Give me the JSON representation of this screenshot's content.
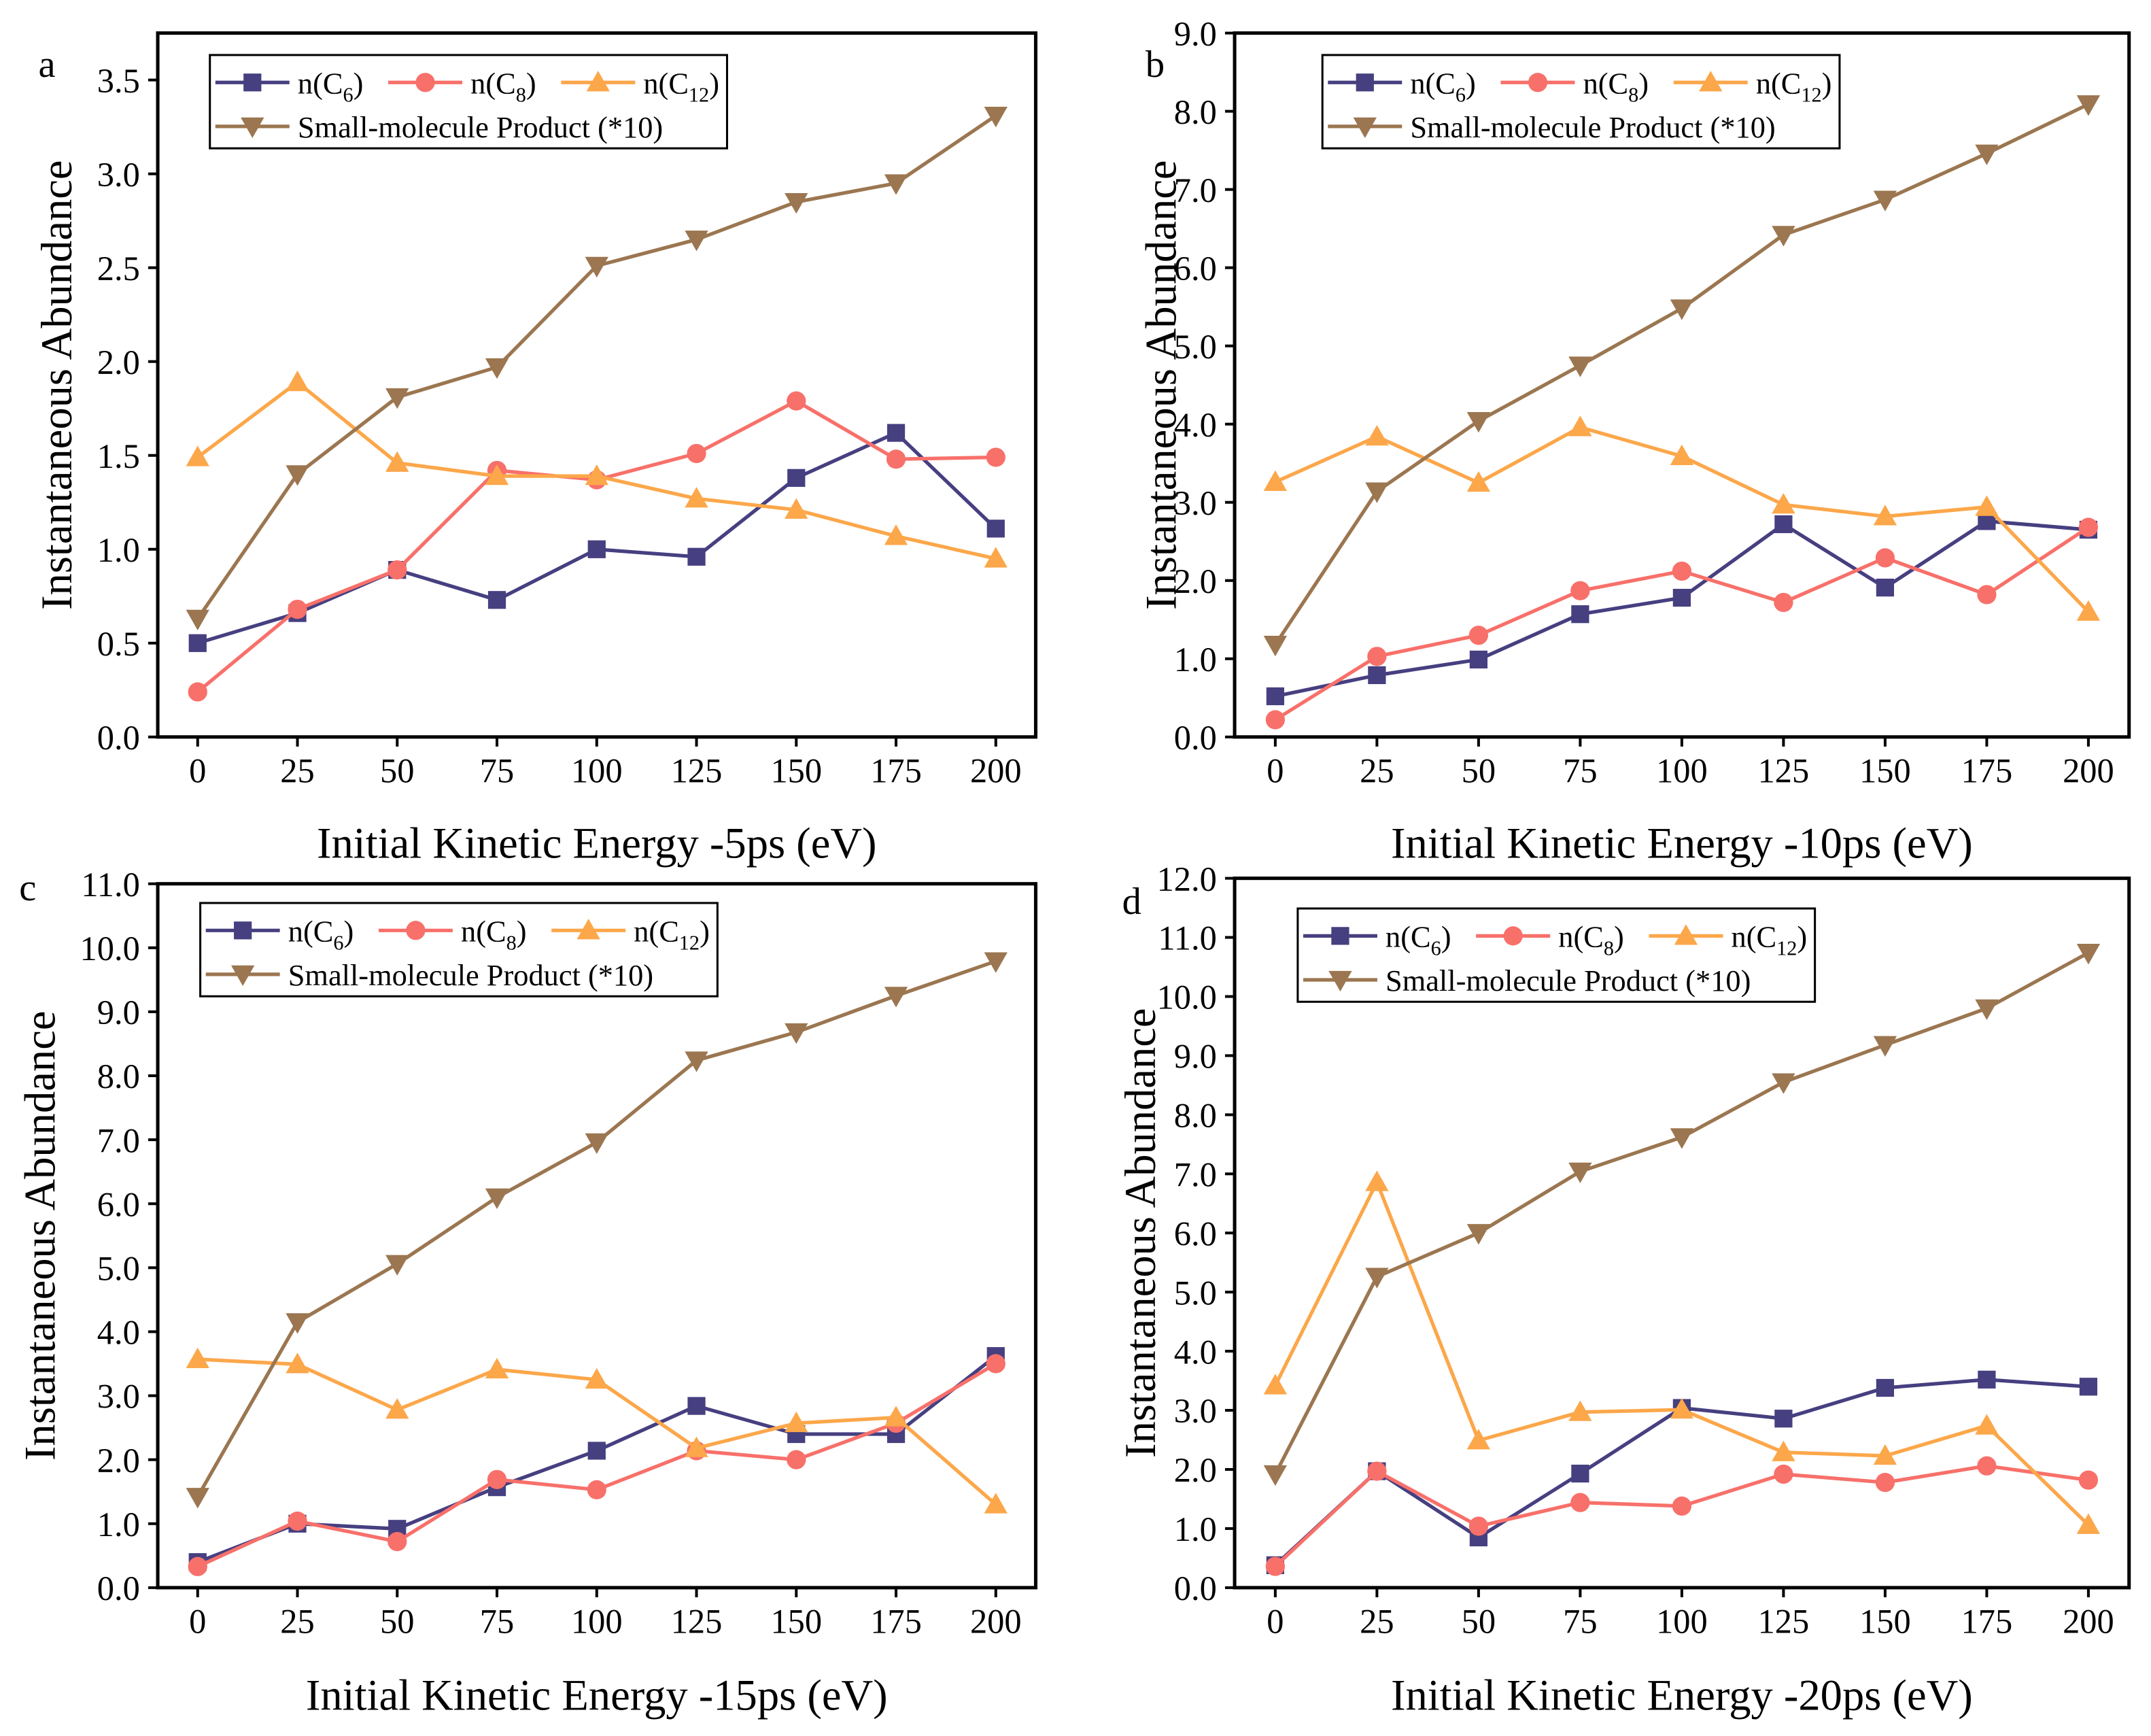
{
  "colors": {
    "c6": "#463f80",
    "c8": "#f8706a",
    "c12": "#fca74a",
    "sp": "#9b7650"
  },
  "chart_data": [
    {
      "type": "line",
      "panel_label": "a",
      "xlabel": "Initial Kinetic Energy -5ps (eV)",
      "ylabel": "Instantaneous Abundance",
      "x": [
        0,
        25,
        50,
        75,
        100,
        125,
        150,
        175,
        200
      ],
      "xticks": [
        "0",
        "25",
        "50",
        "75",
        "100",
        "125",
        "150",
        "175",
        "200"
      ],
      "yticks": [
        "0.0",
        "0.5",
        "1.0",
        "1.5",
        "2.0",
        "2.5",
        "3.0",
        "3.5"
      ],
      "ytick_values": [
        0,
        0.5,
        1,
        1.5,
        2,
        2.5,
        3,
        3.5
      ],
      "ylim": [
        0,
        3.75
      ],
      "xlim": [
        -10,
        210
      ],
      "grid": false,
      "legend_placement": "top-left",
      "series": [
        {
          "key": "c6",
          "name": "n(C",
          "sub": "6",
          "marker": "square",
          "values": [
            0.5,
            0.66,
            0.89,
            0.73,
            1.0,
            0.96,
            1.38,
            1.62,
            1.11
          ]
        },
        {
          "key": "c8",
          "name": "n(C",
          "sub": "8",
          "marker": "circle",
          "values": [
            0.24,
            0.68,
            0.89,
            1.42,
            1.37,
            1.51,
            1.79,
            1.48,
            1.49
          ]
        },
        {
          "key": "c12",
          "name": "n(C",
          "sub": "12",
          "marker": "triangle-up",
          "values": [
            1.49,
            1.89,
            1.46,
            1.39,
            1.39,
            1.27,
            1.21,
            1.07,
            0.95
          ]
        },
        {
          "key": "sp",
          "name": "Small-molecule Product (*10)",
          "sub": "",
          "marker": "triangle-down",
          "values": [
            0.63,
            1.4,
            1.81,
            1.97,
            2.51,
            2.65,
            2.85,
            2.95,
            3.31
          ]
        }
      ]
    },
    {
      "type": "line",
      "panel_label": "b",
      "xlabel": "Initial Kinetic Energy -10ps (eV)",
      "ylabel": "Instantaneous Abundance",
      "x": [
        0,
        25,
        50,
        75,
        100,
        125,
        150,
        175,
        200
      ],
      "xticks": [
        "0",
        "25",
        "50",
        "75",
        "100",
        "125",
        "150",
        "175",
        "200"
      ],
      "yticks": [
        "0.0",
        "1.0",
        "2.0",
        "3.0",
        "4.0",
        "5.0",
        "6.0",
        "7.0",
        "8.0",
        "9.0"
      ],
      "ytick_values": [
        0,
        1,
        2,
        3,
        4,
        5,
        6,
        7,
        8,
        9
      ],
      "ylim": [
        0,
        9
      ],
      "xlim": [
        -10,
        210
      ],
      "grid": false,
      "legend_placement": "top-left",
      "series": [
        {
          "key": "c6",
          "name": "n(C",
          "sub": "6",
          "marker": "square",
          "values": [
            0.52,
            0.79,
            0.99,
            1.57,
            1.78,
            2.72,
            1.91,
            2.76,
            2.65
          ]
        },
        {
          "key": "c8",
          "name": "n(C",
          "sub": "8",
          "marker": "circle",
          "values": [
            0.22,
            1.03,
            1.3,
            1.87,
            2.12,
            1.72,
            2.29,
            1.82,
            2.68
          ]
        },
        {
          "key": "c12",
          "name": "n(C",
          "sub": "12",
          "marker": "triangle-up",
          "values": [
            3.26,
            3.84,
            3.25,
            3.96,
            3.59,
            2.97,
            2.82,
            2.94,
            1.6
          ]
        },
        {
          "key": "sp",
          "name": "Small-molecule Product (*10)",
          "sub": "",
          "marker": "triangle-down",
          "values": [
            1.18,
            3.14,
            4.04,
            4.75,
            5.48,
            6.42,
            6.87,
            7.46,
            8.09
          ]
        }
      ]
    },
    {
      "type": "line",
      "panel_label": "c",
      "xlabel": "Initial Kinetic Energy -15ps (eV)",
      "ylabel": "Instantaneous Abundance",
      "x": [
        0,
        25,
        50,
        75,
        100,
        125,
        150,
        175,
        200
      ],
      "xticks": [
        "0",
        "25",
        "50",
        "75",
        "100",
        "125",
        "150",
        "175",
        "200"
      ],
      "yticks": [
        "0.0",
        "1.0",
        "2.0",
        "3.0",
        "4.0",
        "5.0",
        "6.0",
        "7.0",
        "8.0",
        "9.0",
        "10.0",
        "11.0"
      ],
      "ytick_values": [
        0,
        1,
        2,
        3,
        4,
        5,
        6,
        7,
        8,
        9,
        10,
        11
      ],
      "ylim": [
        0,
        11
      ],
      "xlim": [
        -10,
        210
      ],
      "grid": false,
      "legend_placement": "top-left",
      "series": [
        {
          "key": "c6",
          "name": "n(C",
          "sub": "6",
          "marker": "square",
          "values": [
            0.4,
            1.0,
            0.92,
            1.57,
            2.14,
            2.84,
            2.4,
            2.4,
            3.62
          ]
        },
        {
          "key": "c8",
          "name": "n(C",
          "sub": "8",
          "marker": "circle",
          "values": [
            0.33,
            1.04,
            0.72,
            1.69,
            1.53,
            2.14,
            2.0,
            2.57,
            3.5
          ]
        },
        {
          "key": "c12",
          "name": "n(C",
          "sub": "12",
          "marker": "triangle-up",
          "values": [
            3.57,
            3.49,
            2.78,
            3.41,
            3.25,
            2.18,
            2.57,
            2.66,
            1.3
          ]
        },
        {
          "key": "sp",
          "name": "Small-molecule Product (*10)",
          "sub": "",
          "marker": "triangle-down",
          "values": [
            1.42,
            4.15,
            5.06,
            6.1,
            6.96,
            8.24,
            8.68,
            9.25,
            9.79
          ]
        }
      ]
    },
    {
      "type": "line",
      "panel_label": "d",
      "xlabel": "Initial Kinetic Energy -20ps (eV)",
      "ylabel": "Instantaneous Abundance",
      "x": [
        0,
        25,
        50,
        75,
        100,
        125,
        150,
        175,
        200
      ],
      "xticks": [
        "0",
        "25",
        "50",
        "75",
        "100",
        "125",
        "150",
        "175",
        "200"
      ],
      "yticks": [
        "0.0",
        "1.0",
        "2.0",
        "3.0",
        "4.0",
        "5.0",
        "6.0",
        "7.0",
        "8.0",
        "9.0",
        "10.0",
        "11.0",
        "12.0"
      ],
      "ytick_values": [
        0,
        1,
        2,
        3,
        4,
        5,
        6,
        7,
        8,
        9,
        10,
        11,
        12
      ],
      "ylim": [
        0,
        12
      ],
      "xlim": [
        -10,
        210
      ],
      "grid": false,
      "legend_placement": "top-left",
      "series": [
        {
          "key": "c6",
          "name": "n(C",
          "sub": "6",
          "marker": "square",
          "values": [
            0.38,
            1.97,
            0.85,
            1.93,
            3.04,
            2.86,
            3.38,
            3.52,
            3.4
          ]
        },
        {
          "key": "c8",
          "name": "n(C",
          "sub": "8",
          "marker": "circle",
          "values": [
            0.36,
            1.97,
            1.04,
            1.44,
            1.38,
            1.92,
            1.78,
            2.06,
            1.82
          ]
        },
        {
          "key": "c12",
          "name": "n(C",
          "sub": "12",
          "marker": "triangle-up",
          "values": [
            3.42,
            6.86,
            2.49,
            2.97,
            3.01,
            2.29,
            2.23,
            2.74,
            1.06
          ]
        },
        {
          "key": "sp",
          "name": "Small-molecule Product (*10)",
          "sub": "",
          "marker": "triangle-down",
          "values": [
            1.92,
            5.26,
            6.0,
            7.04,
            7.62,
            8.55,
            9.18,
            9.8,
            10.74
          ]
        }
      ]
    }
  ]
}
